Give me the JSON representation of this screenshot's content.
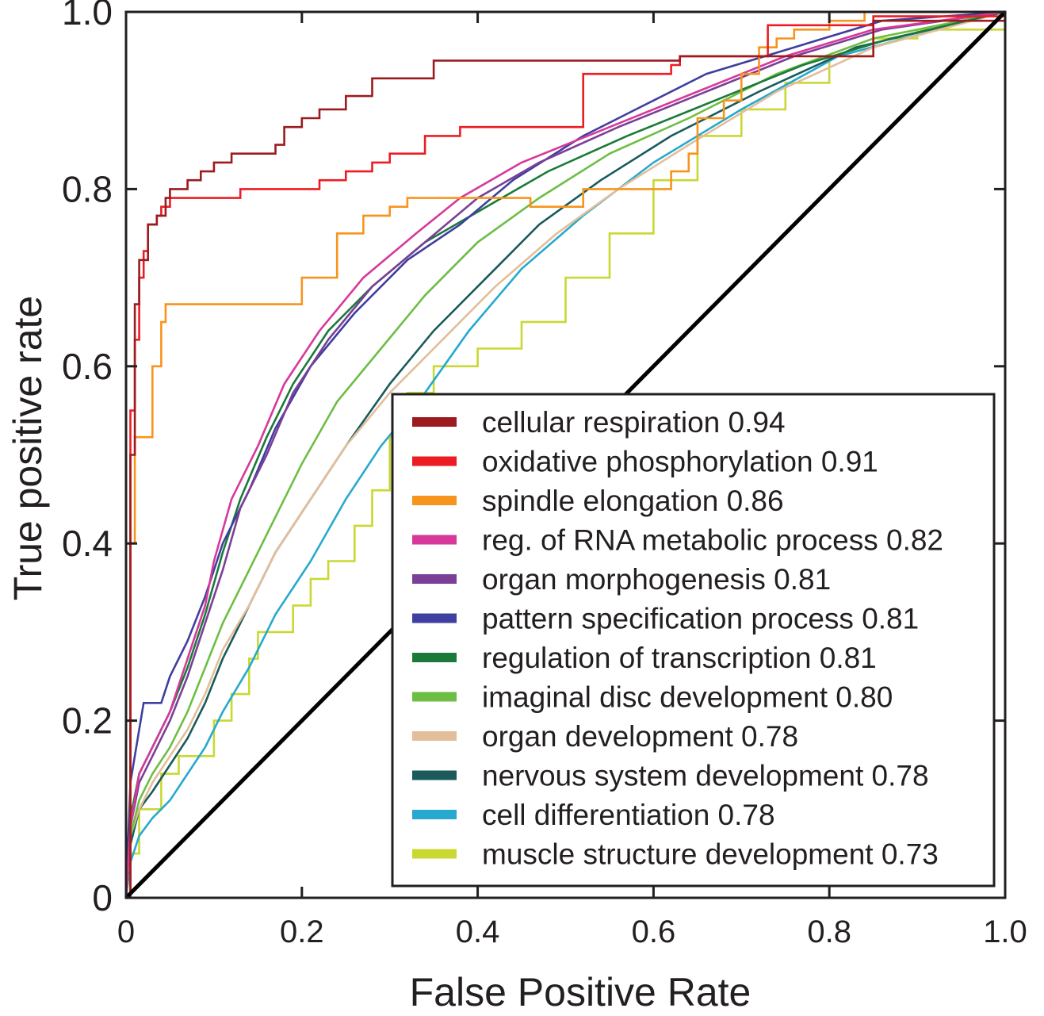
{
  "chart_data": {
    "type": "line",
    "xlabel": "False Positive Rate",
    "ylabel": "True positive rate",
    "xlim": [
      0,
      1.0
    ],
    "ylim": [
      0,
      1.0
    ],
    "x_ticks": [
      "0",
      "0.2",
      "0.4",
      "0.6",
      "0.8",
      "1.0"
    ],
    "y_ticks": [
      "0",
      "0.2",
      "0.4",
      "0.6",
      "0.8",
      "1.0"
    ],
    "grid": false,
    "legend_position": "bottom-right",
    "series": [
      {
        "name": "cellular respiration  0.94",
        "color": "#9b1b1f",
        "step": true,
        "points": [
          [
            0,
            0
          ],
          [
            0.005,
            0.5
          ],
          [
            0.01,
            0.67
          ],
          [
            0.015,
            0.72
          ],
          [
            0.025,
            0.76
          ],
          [
            0.035,
            0.77
          ],
          [
            0.045,
            0.79
          ],
          [
            0.05,
            0.8
          ],
          [
            0.07,
            0.81
          ],
          [
            0.085,
            0.82
          ],
          [
            0.1,
            0.83
          ],
          [
            0.12,
            0.84
          ],
          [
            0.17,
            0.85
          ],
          [
            0.18,
            0.87
          ],
          [
            0.2,
            0.88
          ],
          [
            0.22,
            0.89
          ],
          [
            0.25,
            0.905
          ],
          [
            0.28,
            0.925
          ],
          [
            0.35,
            0.945
          ],
          [
            0.63,
            0.95
          ],
          [
            0.85,
            0.99
          ],
          [
            1.0,
            1.0
          ]
        ]
      },
      {
        "name": "oxidative phosphorylation 0.91",
        "color": "#ed1c24",
        "step": true,
        "points": [
          [
            0,
            0
          ],
          [
            0.005,
            0.55
          ],
          [
            0.01,
            0.63
          ],
          [
            0.015,
            0.7
          ],
          [
            0.02,
            0.73
          ],
          [
            0.025,
            0.76
          ],
          [
            0.035,
            0.77
          ],
          [
            0.04,
            0.78
          ],
          [
            0.05,
            0.79
          ],
          [
            0.13,
            0.8
          ],
          [
            0.2,
            0.8
          ],
          [
            0.22,
            0.81
          ],
          [
            0.25,
            0.82
          ],
          [
            0.28,
            0.83
          ],
          [
            0.3,
            0.84
          ],
          [
            0.34,
            0.86
          ],
          [
            0.38,
            0.87
          ],
          [
            0.45,
            0.87
          ],
          [
            0.52,
            0.93
          ],
          [
            0.62,
            0.94
          ],
          [
            0.63,
            0.95
          ],
          [
            0.73,
            0.985
          ],
          [
            0.85,
            0.995
          ],
          [
            1.0,
            1.0
          ]
        ]
      },
      {
        "name": "spindle elongation 0.86",
        "color": "#f7941d",
        "step": true,
        "points": [
          [
            0,
            0
          ],
          [
            0.005,
            0.4
          ],
          [
            0.01,
            0.52
          ],
          [
            0.025,
            0.52
          ],
          [
            0.03,
            0.6
          ],
          [
            0.04,
            0.65
          ],
          [
            0.045,
            0.67
          ],
          [
            0.2,
            0.67
          ],
          [
            0.2,
            0.7
          ],
          [
            0.24,
            0.7
          ],
          [
            0.24,
            0.75
          ],
          [
            0.26,
            0.75
          ],
          [
            0.27,
            0.77
          ],
          [
            0.3,
            0.77
          ],
          [
            0.3,
            0.78
          ],
          [
            0.32,
            0.79
          ],
          [
            0.45,
            0.79
          ],
          [
            0.46,
            0.78
          ],
          [
            0.52,
            0.8
          ],
          [
            0.62,
            0.82
          ],
          [
            0.64,
            0.84
          ],
          [
            0.65,
            0.88
          ],
          [
            0.68,
            0.9
          ],
          [
            0.7,
            0.93
          ],
          [
            0.72,
            0.96
          ],
          [
            0.74,
            0.97
          ],
          [
            0.76,
            0.98
          ],
          [
            0.8,
            0.99
          ],
          [
            0.84,
            1.0
          ],
          [
            1.0,
            1.0
          ]
        ]
      },
      {
        "name": "reg. of RNA metabolic process 0.82",
        "color": "#d6399a",
        "step": false,
        "points": [
          [
            0,
            0
          ],
          [
            0.005,
            0.08
          ],
          [
            0.015,
            0.14
          ],
          [
            0.03,
            0.17
          ],
          [
            0.05,
            0.21
          ],
          [
            0.07,
            0.27
          ],
          [
            0.09,
            0.33
          ],
          [
            0.1,
            0.38
          ],
          [
            0.12,
            0.45
          ],
          [
            0.15,
            0.51
          ],
          [
            0.18,
            0.58
          ],
          [
            0.22,
            0.64
          ],
          [
            0.27,
            0.7
          ],
          [
            0.33,
            0.75
          ],
          [
            0.38,
            0.79
          ],
          [
            0.45,
            0.83
          ],
          [
            0.55,
            0.87
          ],
          [
            0.65,
            0.91
          ],
          [
            0.75,
            0.95
          ],
          [
            0.85,
            0.98
          ],
          [
            1.0,
            1.0
          ]
        ]
      },
      {
        "name": "organ morphogenesis 0.81",
        "color": "#7b3f98",
        "step": false,
        "points": [
          [
            0,
            0
          ],
          [
            0.005,
            0.08
          ],
          [
            0.015,
            0.13
          ],
          [
            0.03,
            0.16
          ],
          [
            0.05,
            0.2
          ],
          [
            0.07,
            0.25
          ],
          [
            0.09,
            0.31
          ],
          [
            0.11,
            0.37
          ],
          [
            0.13,
            0.44
          ],
          [
            0.16,
            0.5
          ],
          [
            0.19,
            0.57
          ],
          [
            0.23,
            0.63
          ],
          [
            0.28,
            0.69
          ],
          [
            0.34,
            0.74
          ],
          [
            0.4,
            0.79
          ],
          [
            0.47,
            0.83
          ],
          [
            0.56,
            0.87
          ],
          [
            0.66,
            0.91
          ],
          [
            0.76,
            0.95
          ],
          [
            0.86,
            0.98
          ],
          [
            1.0,
            1.0
          ]
        ]
      },
      {
        "name": "pattern specification process  0.81",
        "color": "#3f3f9f",
        "step": false,
        "points": [
          [
            0,
            0
          ],
          [
            0.005,
            0.13
          ],
          [
            0.015,
            0.19
          ],
          [
            0.02,
            0.22
          ],
          [
            0.04,
            0.22
          ],
          [
            0.05,
            0.25
          ],
          [
            0.07,
            0.29
          ],
          [
            0.09,
            0.34
          ],
          [
            0.11,
            0.4
          ],
          [
            0.14,
            0.46
          ],
          [
            0.17,
            0.53
          ],
          [
            0.21,
            0.6
          ],
          [
            0.26,
            0.66
          ],
          [
            0.32,
            0.72
          ],
          [
            0.38,
            0.76
          ],
          [
            0.44,
            0.81
          ],
          [
            0.52,
            0.86
          ],
          [
            0.58,
            0.89
          ],
          [
            0.66,
            0.93
          ],
          [
            0.76,
            0.96
          ],
          [
            0.86,
            0.99
          ],
          [
            1.0,
            1.0
          ]
        ]
      },
      {
        "name": "regulation of transcription  0.81",
        "color": "#1b7a3a",
        "step": false,
        "points": [
          [
            0,
            0
          ],
          [
            0.005,
            0.09
          ],
          [
            0.015,
            0.14
          ],
          [
            0.03,
            0.17
          ],
          [
            0.05,
            0.21
          ],
          [
            0.07,
            0.26
          ],
          [
            0.09,
            0.32
          ],
          [
            0.11,
            0.39
          ],
          [
            0.13,
            0.45
          ],
          [
            0.16,
            0.52
          ],
          [
            0.19,
            0.58
          ],
          [
            0.23,
            0.64
          ],
          [
            0.28,
            0.69
          ],
          [
            0.34,
            0.74
          ],
          [
            0.41,
            0.78
          ],
          [
            0.48,
            0.82
          ],
          [
            0.57,
            0.86
          ],
          [
            0.67,
            0.9
          ],
          [
            0.77,
            0.94
          ],
          [
            0.87,
            0.97
          ],
          [
            1.0,
            1.0
          ]
        ]
      },
      {
        "name": "imaginal disc development 0.80",
        "color": "#6dbe45",
        "step": false,
        "points": [
          [
            0,
            0
          ],
          [
            0.005,
            0.07
          ],
          [
            0.015,
            0.11
          ],
          [
            0.03,
            0.14
          ],
          [
            0.05,
            0.17
          ],
          [
            0.07,
            0.21
          ],
          [
            0.09,
            0.26
          ],
          [
            0.11,
            0.31
          ],
          [
            0.14,
            0.37
          ],
          [
            0.17,
            0.43
          ],
          [
            0.2,
            0.49
          ],
          [
            0.24,
            0.56
          ],
          [
            0.29,
            0.62
          ],
          [
            0.34,
            0.68
          ],
          [
            0.4,
            0.74
          ],
          [
            0.47,
            0.79
          ],
          [
            0.55,
            0.84
          ],
          [
            0.64,
            0.88
          ],
          [
            0.74,
            0.93
          ],
          [
            0.85,
            0.97
          ],
          [
            1.0,
            1.0
          ]
        ]
      },
      {
        "name": "organ development 0.78",
        "color": "#e3be9a",
        "step": false,
        "points": [
          [
            0,
            0
          ],
          [
            0.005,
            0.07
          ],
          [
            0.015,
            0.1
          ],
          [
            0.03,
            0.13
          ],
          [
            0.05,
            0.16
          ],
          [
            0.07,
            0.19
          ],
          [
            0.09,
            0.23
          ],
          [
            0.11,
            0.28
          ],
          [
            0.14,
            0.33
          ],
          [
            0.17,
            0.39
          ],
          [
            0.21,
            0.45
          ],
          [
            0.25,
            0.51
          ],
          [
            0.3,
            0.57
          ],
          [
            0.36,
            0.63
          ],
          [
            0.42,
            0.69
          ],
          [
            0.49,
            0.75
          ],
          [
            0.56,
            0.8
          ],
          [
            0.64,
            0.85
          ],
          [
            0.74,
            0.91
          ],
          [
            0.85,
            0.96
          ],
          [
            1.0,
            1.0
          ]
        ]
      },
      {
        "name": "nervous system development 0.78",
        "color": "#1a5a5a",
        "step": false,
        "points": [
          [
            0,
            0
          ],
          [
            0.005,
            0.06
          ],
          [
            0.015,
            0.1
          ],
          [
            0.03,
            0.12
          ],
          [
            0.05,
            0.15
          ],
          [
            0.07,
            0.18
          ],
          [
            0.09,
            0.22
          ],
          [
            0.11,
            0.27
          ],
          [
            0.14,
            0.33
          ],
          [
            0.17,
            0.39
          ],
          [
            0.21,
            0.45
          ],
          [
            0.25,
            0.51
          ],
          [
            0.3,
            0.58
          ],
          [
            0.35,
            0.64
          ],
          [
            0.41,
            0.7
          ],
          [
            0.47,
            0.76
          ],
          [
            0.54,
            0.81
          ],
          [
            0.62,
            0.86
          ],
          [
            0.72,
            0.91
          ],
          [
            0.83,
            0.96
          ],
          [
            1.0,
            1.0
          ]
        ]
      },
      {
        "name": "cell differentiation 0.78",
        "color": "#27a9cf",
        "step": false,
        "points": [
          [
            0,
            0
          ],
          [
            0.005,
            0.04
          ],
          [
            0.015,
            0.07
          ],
          [
            0.03,
            0.09
          ],
          [
            0.05,
            0.11
          ],
          [
            0.07,
            0.14
          ],
          [
            0.09,
            0.17
          ],
          [
            0.11,
            0.21
          ],
          [
            0.14,
            0.26
          ],
          [
            0.17,
            0.32
          ],
          [
            0.21,
            0.38
          ],
          [
            0.25,
            0.45
          ],
          [
            0.29,
            0.51
          ],
          [
            0.34,
            0.57
          ],
          [
            0.39,
            0.64
          ],
          [
            0.45,
            0.71
          ],
          [
            0.52,
            0.77
          ],
          [
            0.6,
            0.83
          ],
          [
            0.7,
            0.89
          ],
          [
            0.81,
            0.95
          ],
          [
            1.0,
            1.0
          ]
        ]
      },
      {
        "name": "muscle structure development 0.73",
        "color": "#c9d832",
        "step": true,
        "points": [
          [
            0,
            0
          ],
          [
            0.005,
            0.05
          ],
          [
            0.015,
            0.1
          ],
          [
            0.04,
            0.14
          ],
          [
            0.06,
            0.16
          ],
          [
            0.1,
            0.2
          ],
          [
            0.12,
            0.23
          ],
          [
            0.14,
            0.27
          ],
          [
            0.15,
            0.3
          ],
          [
            0.18,
            0.3
          ],
          [
            0.19,
            0.33
          ],
          [
            0.21,
            0.36
          ],
          [
            0.23,
            0.38
          ],
          [
            0.26,
            0.42
          ],
          [
            0.28,
            0.46
          ],
          [
            0.3,
            0.52
          ],
          [
            0.32,
            0.57
          ],
          [
            0.35,
            0.6
          ],
          [
            0.4,
            0.62
          ],
          [
            0.45,
            0.65
          ],
          [
            0.5,
            0.7
          ],
          [
            0.55,
            0.75
          ],
          [
            0.6,
            0.81
          ],
          [
            0.65,
            0.86
          ],
          [
            0.7,
            0.89
          ],
          [
            0.75,
            0.92
          ],
          [
            0.8,
            0.95
          ],
          [
            0.85,
            0.97
          ],
          [
            0.9,
            0.98
          ],
          [
            1.0,
            1.0
          ]
        ]
      }
    ],
    "reference_line": {
      "points": [
        [
          0,
          0
        ],
        [
          1,
          1
        ]
      ],
      "color": "#000000"
    }
  }
}
